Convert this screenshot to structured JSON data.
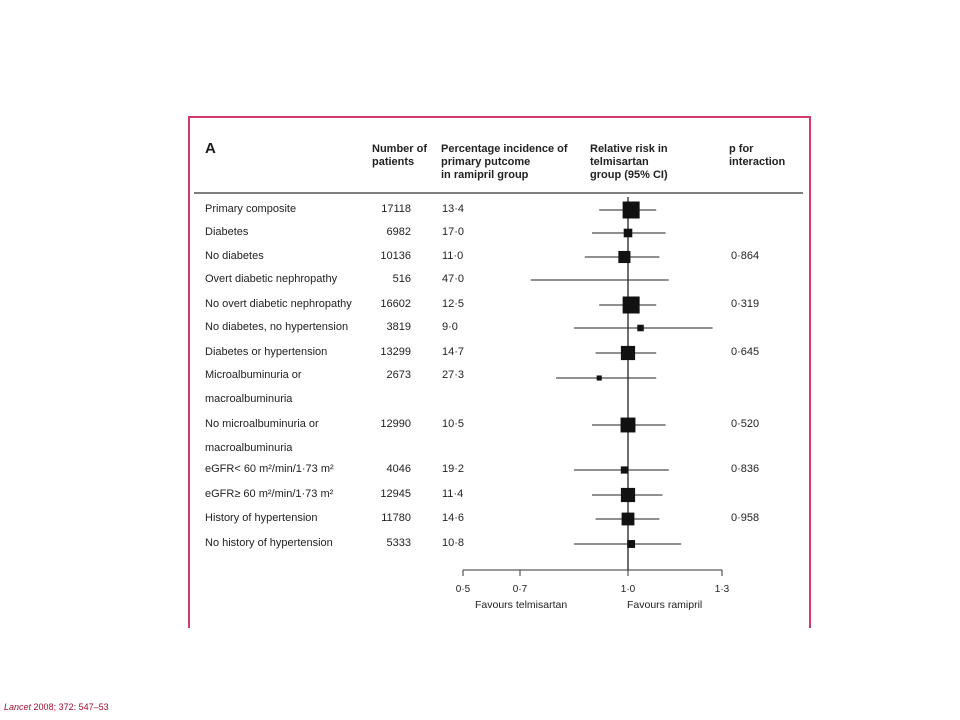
{
  "panel_label": "A",
  "headers": {
    "patients": [
      "Number of",
      "patients"
    ],
    "incidence": [
      "Percentage incidence of",
      "primary putcome",
      "in ramipril group"
    ],
    "rr": [
      "Relative risk in",
      "telmisartan",
      "group (95% CI)"
    ],
    "pint": [
      "p for",
      "interaction"
    ]
  },
  "rows": [
    {
      "label": [
        "Primary composite"
      ],
      "n": "17118",
      "pct": "13·4",
      "p": ""
    },
    {
      "label": [
        "Diabetes"
      ],
      "n": "6982",
      "pct": "17·0",
      "p": ""
    },
    {
      "label": [
        "No diabetes"
      ],
      "n": "10136",
      "pct": "11·0",
      "p": "0·864"
    },
    {
      "label": [
        "Overt diabetic nephropathy"
      ],
      "n": "516",
      "pct": "47·0",
      "p": ""
    },
    {
      "label": [
        "No overt diabetic nephropathy"
      ],
      "n": "16602",
      "pct": "12·5",
      "p": "0·319"
    },
    {
      "label": [
        "No diabetes, no hypertension"
      ],
      "n": "3819",
      "pct": "9·0",
      "p": ""
    },
    {
      "label": [
        "Diabetes or hypertension"
      ],
      "n": "13299",
      "pct": "14·7",
      "p": "0·645"
    },
    {
      "label": [
        "Microalbuminuria or",
        "macroalbuminuria"
      ],
      "n": "2673",
      "pct": "27·3",
      "p": ""
    },
    {
      "label": [
        "No microalbuminuria or",
        "macroalbuminuria"
      ],
      "n": "12990",
      "pct": "10·5",
      "p": "0·520"
    },
    {
      "label": [
        "eGFR< 60 m²/min/1·73 m²"
      ],
      "n": "4046",
      "pct": "19·2",
      "p": "0·836"
    },
    {
      "label": [
        "eGFR≥ 60 m²/min/1·73 m²"
      ],
      "n": "12945",
      "pct": "11·4",
      "p": ""
    },
    {
      "label": [
        "History of hypertension"
      ],
      "n": "11780",
      "pct": "14·6",
      "p": "0·958"
    },
    {
      "label": [
        "No history of hypertension"
      ],
      "n": "5333",
      "pct": "10·8",
      "p": ""
    }
  ],
  "axis": {
    "ticks": [
      0.5,
      0.7,
      1.0,
      1.3
    ],
    "tick_labels": [
      "0·5",
      "0·7",
      "1·0",
      "1·3"
    ],
    "favours_left": "Favours telmisartan",
    "favours_right": "Favours ramipril"
  },
  "chart_data": {
    "type": "forest",
    "xlim": [
      0.5,
      1.3
    ],
    "reference_line": 1.0,
    "categories": [
      "Primary composite",
      "Diabetes",
      "No diabetes",
      "Overt diabetic nephropathy",
      "No overt diabetic nephropathy",
      "No diabetes, no hypertension",
      "Diabetes or hypertension",
      "Microalbuminuria or macroalbuminuria",
      "No microalbuminuria or macroalbuminuria",
      "eGFR< 60 m²/min/1·73 m²",
      "eGFR≥ 60 m²/min/1·73 m²",
      "History of hypertension",
      "No history of hypertension"
    ],
    "estimates": [
      1.01,
      1.0,
      0.99,
      null,
      1.01,
      1.04,
      1.0,
      0.92,
      1.0,
      0.99,
      1.0,
      1.0,
      1.01
    ],
    "ci_low": [
      0.92,
      0.9,
      0.88,
      0.73,
      0.92,
      0.85,
      0.91,
      0.8,
      0.9,
      0.85,
      0.9,
      0.91,
      0.85
    ],
    "ci_high": [
      1.09,
      1.12,
      1.1,
      1.13,
      1.09,
      1.27,
      1.09,
      1.09,
      1.12,
      1.13,
      1.11,
      1.1,
      1.17
    ],
    "weight": [
      1.0,
      0.4,
      0.65,
      0.0,
      1.0,
      0.25,
      0.8,
      0.15,
      0.85,
      0.3,
      0.8,
      0.7,
      0.35
    ]
  },
  "citation": {
    "journal": "Lancet",
    "ref": "2008; 372: 547–53"
  }
}
